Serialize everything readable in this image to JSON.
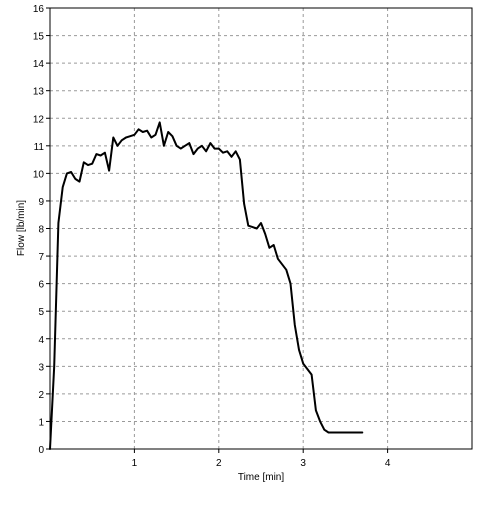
{
  "chart_data": {
    "type": "line",
    "xlabel": "Time [min]",
    "ylabel": "Flow [lb/min]",
    "xlim": [
      0,
      5
    ],
    "ylim": [
      0,
      16
    ],
    "x_ticks": [
      1,
      2,
      3,
      4
    ],
    "y_ticks": [
      0,
      1,
      2,
      3,
      4,
      5,
      6,
      7,
      8,
      9,
      10,
      11,
      12,
      13,
      14,
      15,
      16
    ],
    "grid": true,
    "grid_style": "dashed",
    "line_color": "#000000",
    "series": [
      {
        "x": [
          0.0,
          0.05,
          0.1,
          0.15,
          0.2,
          0.25,
          0.3,
          0.35,
          0.4,
          0.45,
          0.5,
          0.55,
          0.6,
          0.65,
          0.7,
          0.75,
          0.8,
          0.85,
          0.9,
          0.95,
          1.0,
          1.05,
          1.1,
          1.15,
          1.2,
          1.25,
          1.3,
          1.35,
          1.4,
          1.45,
          1.5,
          1.55,
          1.6,
          1.65,
          1.7,
          1.75,
          1.8,
          1.85,
          1.9,
          1.95,
          2.0,
          2.05,
          2.1,
          2.15,
          2.2,
          2.25,
          2.3,
          2.35,
          2.4,
          2.45,
          2.5,
          2.55,
          2.6,
          2.65,
          2.7,
          2.75,
          2.8,
          2.85,
          2.9,
          2.95,
          3.0,
          3.05,
          3.1,
          3.15,
          3.2,
          3.25,
          3.3,
          3.35,
          3.4,
          3.45,
          3.5,
          3.55,
          3.6,
          3.65,
          3.7
        ],
        "y": [
          0.0,
          3.0,
          8.2,
          9.5,
          10.0,
          10.05,
          9.8,
          9.7,
          10.4,
          10.3,
          10.35,
          10.7,
          10.65,
          10.75,
          10.1,
          11.3,
          11.0,
          11.2,
          11.3,
          11.35,
          11.4,
          11.6,
          11.5,
          11.55,
          11.3,
          11.4,
          11.85,
          11.0,
          11.5,
          11.35,
          11.0,
          10.9,
          11.0,
          11.1,
          10.7,
          10.9,
          11.0,
          10.8,
          11.1,
          10.9,
          10.9,
          10.75,
          10.8,
          10.6,
          10.8,
          10.5,
          8.9,
          8.1,
          8.05,
          8.0,
          8.2,
          7.8,
          7.3,
          7.4,
          6.9,
          6.7,
          6.5,
          6.0,
          4.5,
          3.6,
          3.1,
          2.9,
          2.7,
          1.4,
          1.0,
          0.7,
          0.6,
          0.6,
          0.6,
          0.6,
          0.6,
          0.6,
          0.6,
          0.6,
          0.6
        ]
      }
    ]
  }
}
